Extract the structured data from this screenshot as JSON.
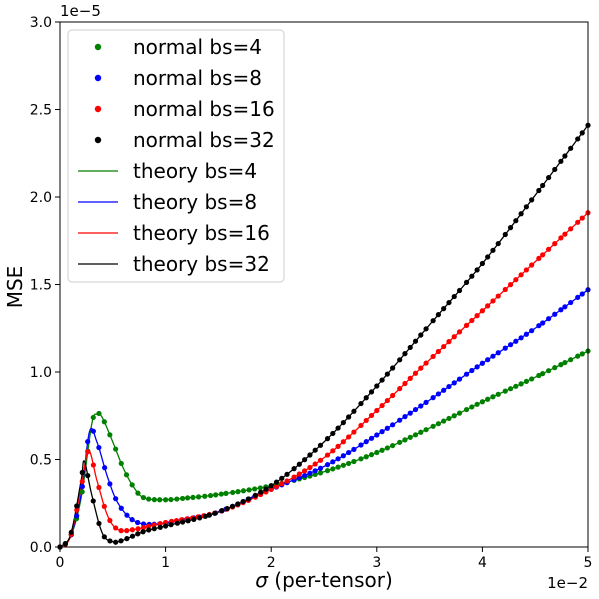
{
  "chart_data": {
    "type": "line",
    "xlabel_prefix": "σ",
    "xlabel_suffix": " (per-tensor)",
    "ylabel": "MSE",
    "x_offset_text": "1e−2",
    "y_offset_text": "1e−5",
    "xlim": [
      0,
      5
    ],
    "ylim": [
      0,
      3.0
    ],
    "x_ticks": [
      "0",
      "1",
      "2",
      "3",
      "4",
      "5"
    ],
    "y_ticks": [
      "0.0",
      "0.5",
      "1.0",
      "1.5",
      "2.0",
      "2.5",
      "3.0"
    ],
    "legend_position": "upper-left",
    "series": [
      {
        "name": "normal bs=4",
        "color": "#008000",
        "marker": "dot",
        "points": [
          [
            0,
            0
          ],
          [
            0.1,
            0.06
          ],
          [
            0.2,
            0.28
          ],
          [
            0.3,
            0.7
          ],
          [
            0.35,
            0.76
          ],
          [
            0.4,
            0.74
          ],
          [
            0.5,
            0.6
          ],
          [
            0.6,
            0.45
          ],
          [
            0.7,
            0.34
          ],
          [
            0.8,
            0.28
          ],
          [
            1.0,
            0.27
          ],
          [
            1.2,
            0.28
          ],
          [
            1.5,
            0.3
          ],
          [
            2.0,
            0.35
          ],
          [
            2.5,
            0.43
          ],
          [
            3.0,
            0.54
          ],
          [
            3.5,
            0.68
          ],
          [
            4.0,
            0.83
          ],
          [
            4.5,
            0.97
          ],
          [
            5.0,
            1.12
          ]
        ]
      },
      {
        "name": "normal bs=8",
        "color": "#0000ff",
        "marker": "dot",
        "points": [
          [
            0,
            0
          ],
          [
            0.1,
            0.06
          ],
          [
            0.2,
            0.3
          ],
          [
            0.28,
            0.66
          ],
          [
            0.35,
            0.6
          ],
          [
            0.45,
            0.4
          ],
          [
            0.55,
            0.25
          ],
          [
            0.7,
            0.15
          ],
          [
            0.9,
            0.13
          ],
          [
            1.2,
            0.16
          ],
          [
            1.5,
            0.2
          ],
          [
            2.0,
            0.33
          ],
          [
            2.5,
            0.46
          ],
          [
            3.0,
            0.64
          ],
          [
            3.5,
            0.84
          ],
          [
            4.0,
            1.05
          ],
          [
            4.5,
            1.25
          ],
          [
            5.0,
            1.47
          ]
        ]
      },
      {
        "name": "normal bs=16",
        "color": "#ff0000",
        "marker": "dot",
        "points": [
          [
            0,
            0
          ],
          [
            0.1,
            0.06
          ],
          [
            0.2,
            0.34
          ],
          [
            0.27,
            0.55
          ],
          [
            0.35,
            0.38
          ],
          [
            0.45,
            0.18
          ],
          [
            0.55,
            0.1
          ],
          [
            0.7,
            0.1
          ],
          [
            1.0,
            0.14
          ],
          [
            1.5,
            0.2
          ],
          [
            2.0,
            0.33
          ],
          [
            2.5,
            0.51
          ],
          [
            3.0,
            0.78
          ],
          [
            3.5,
            1.07
          ],
          [
            4.0,
            1.35
          ],
          [
            4.5,
            1.63
          ],
          [
            5.0,
            1.91
          ]
        ]
      },
      {
        "name": "normal bs=32",
        "color": "#000000",
        "marker": "dot",
        "points": [
          [
            0,
            0
          ],
          [
            0.1,
            0.07
          ],
          [
            0.2,
            0.38
          ],
          [
            0.23,
            0.49
          ],
          [
            0.3,
            0.3
          ],
          [
            0.4,
            0.08
          ],
          [
            0.5,
            0.03
          ],
          [
            0.6,
            0.04
          ],
          [
            0.8,
            0.09
          ],
          [
            1.0,
            0.12
          ],
          [
            1.5,
            0.2
          ],
          [
            2.0,
            0.35
          ],
          [
            2.5,
            0.6
          ],
          [
            3.0,
            0.92
          ],
          [
            3.5,
            1.27
          ],
          [
            4.0,
            1.62
          ],
          [
            4.5,
            2.01
          ],
          [
            5.0,
            2.41
          ]
        ]
      },
      {
        "name": "theory bs=4",
        "color": "#008000",
        "marker": "line",
        "points": [
          [
            0,
            0
          ],
          [
            0.1,
            0.06
          ],
          [
            0.2,
            0.28
          ],
          [
            0.3,
            0.7
          ],
          [
            0.35,
            0.76
          ],
          [
            0.4,
            0.74
          ],
          [
            0.5,
            0.6
          ],
          [
            0.6,
            0.45
          ],
          [
            0.7,
            0.34
          ],
          [
            0.8,
            0.28
          ],
          [
            1.0,
            0.27
          ],
          [
            1.2,
            0.28
          ],
          [
            1.5,
            0.3
          ],
          [
            2.0,
            0.35
          ],
          [
            2.5,
            0.43
          ],
          [
            3.0,
            0.54
          ],
          [
            3.5,
            0.68
          ],
          [
            4.0,
            0.83
          ],
          [
            4.5,
            0.97
          ],
          [
            5.0,
            1.12
          ]
        ]
      },
      {
        "name": "theory bs=8",
        "color": "#0000ff",
        "marker": "line",
        "points": [
          [
            0,
            0
          ],
          [
            0.1,
            0.06
          ],
          [
            0.2,
            0.3
          ],
          [
            0.28,
            0.66
          ],
          [
            0.35,
            0.6
          ],
          [
            0.45,
            0.4
          ],
          [
            0.55,
            0.25
          ],
          [
            0.7,
            0.15
          ],
          [
            0.9,
            0.13
          ],
          [
            1.2,
            0.16
          ],
          [
            1.5,
            0.2
          ],
          [
            2.0,
            0.33
          ],
          [
            2.5,
            0.46
          ],
          [
            3.0,
            0.64
          ],
          [
            3.5,
            0.84
          ],
          [
            4.0,
            1.05
          ],
          [
            4.5,
            1.25
          ],
          [
            5.0,
            1.47
          ]
        ]
      },
      {
        "name": "theory bs=16",
        "color": "#ff0000",
        "marker": "line",
        "points": [
          [
            0,
            0
          ],
          [
            0.1,
            0.06
          ],
          [
            0.2,
            0.34
          ],
          [
            0.27,
            0.55
          ],
          [
            0.35,
            0.38
          ],
          [
            0.45,
            0.18
          ],
          [
            0.55,
            0.1
          ],
          [
            0.7,
            0.1
          ],
          [
            1.0,
            0.14
          ],
          [
            1.5,
            0.2
          ],
          [
            2.0,
            0.33
          ],
          [
            2.5,
            0.51
          ],
          [
            3.0,
            0.78
          ],
          [
            3.5,
            1.07
          ],
          [
            4.0,
            1.35
          ],
          [
            4.5,
            1.63
          ],
          [
            5.0,
            1.91
          ]
        ]
      },
      {
        "name": "theory bs=32",
        "color": "#000000",
        "marker": "line",
        "points": [
          [
            0,
            0
          ],
          [
            0.1,
            0.07
          ],
          [
            0.2,
            0.38
          ],
          [
            0.23,
            0.49
          ],
          [
            0.3,
            0.3
          ],
          [
            0.4,
            0.08
          ],
          [
            0.5,
            0.03
          ],
          [
            0.6,
            0.04
          ],
          [
            0.8,
            0.09
          ],
          [
            1.0,
            0.12
          ],
          [
            1.5,
            0.2
          ],
          [
            2.0,
            0.35
          ],
          [
            2.5,
            0.6
          ],
          [
            3.0,
            0.92
          ],
          [
            3.5,
            1.27
          ],
          [
            4.0,
            1.62
          ],
          [
            4.5,
            2.01
          ],
          [
            5.0,
            2.41
          ]
        ]
      }
    ]
  }
}
